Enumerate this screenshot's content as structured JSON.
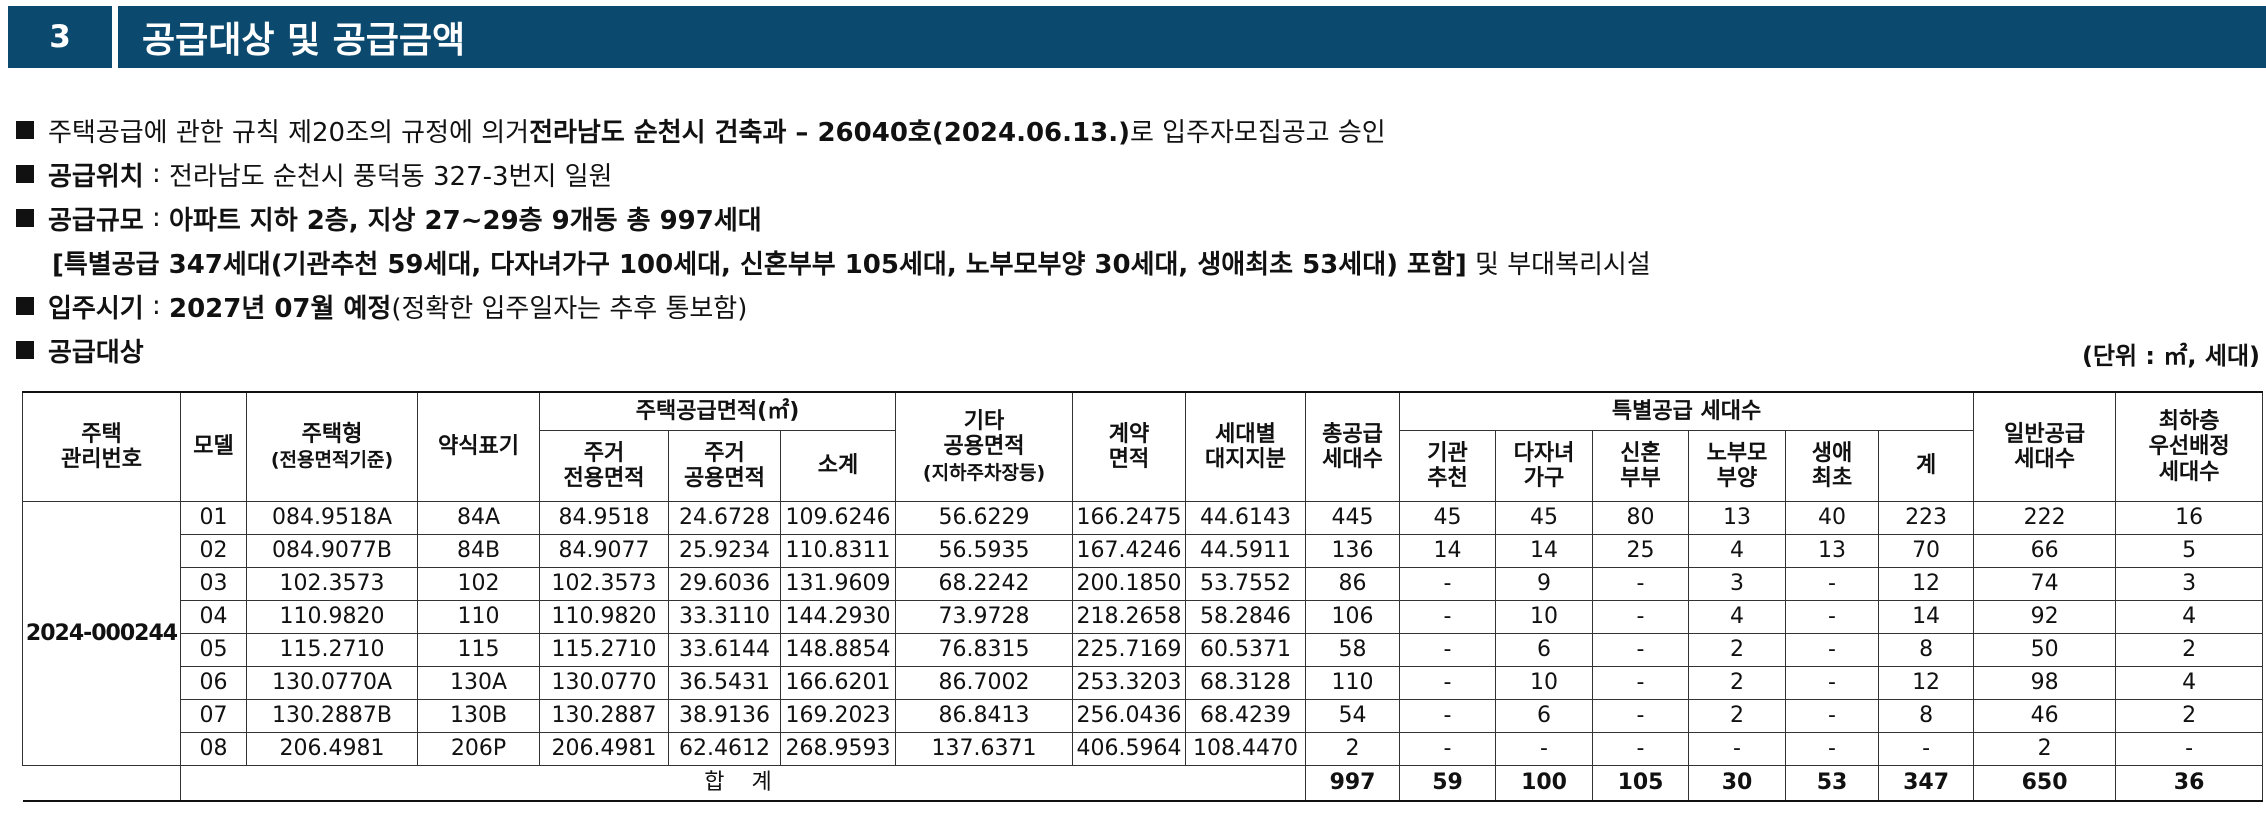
{
  "header": {
    "section_number": "3",
    "title": "공급대상 및 공급금액"
  },
  "info": {
    "approval": {
      "prefix": "주택공급에 관한 규칙 제20조의 규정에 의거 ",
      "bold": "전라남도 순천시 건축과 – 26040호(2024.06.13.)",
      "suffix": "로 입주자모집공고 승인"
    },
    "location": {
      "label": "공급위치",
      "sep": " : ",
      "value": "전라남도 순천시 풍덕동 327-3번지 일원"
    },
    "scale": {
      "label": "공급규모",
      "sep": " : ",
      "value": "아파트 지하 2층, 지상 27~29층 9개동 총 997세대"
    },
    "special": {
      "bold": "[특별공급 347세대(기관추천 59세대, 다자녀가구 100세대, 신혼부부 105세대, 노부모부양 30세대, 생애최초 53세대) 포함]",
      "suffix": " 및 부대복리시설"
    },
    "movein": {
      "label": "입주시기",
      "sep": " : ",
      "bold": "2027년 07월 예정",
      "suffix": "(정확한 입주일자는 추후 통보함)"
    },
    "target": {
      "label": "공급대상"
    },
    "unit": "(단위 : ㎡, 세대)"
  },
  "table": {
    "headers": {
      "mgmt_no": [
        "주택",
        "관리번호"
      ],
      "model": "모델",
      "type": "주택형",
      "type_sub": "(전용면적기준)",
      "abbr": "약식표기",
      "area_group": "주택공급면적(㎡)",
      "excl": [
        "주거",
        "전용면적"
      ],
      "common": [
        "주거",
        "공용면적"
      ],
      "subtotal": "소계",
      "other": [
        "기타",
        "공용면적"
      ],
      "other_sub": "(지하주차장등)",
      "contract": [
        "계약",
        "면적"
      ],
      "land": [
        "세대별",
        "대지지분"
      ],
      "total_supply": [
        "총공급",
        "세대수"
      ],
      "special_group": "특별공급 세대수",
      "inst": [
        "기관",
        "추천"
      ],
      "multi": [
        "다자녀",
        "가구"
      ],
      "newlywed": [
        "신혼",
        "부부"
      ],
      "parents": [
        "노부모",
        "부양"
      ],
      "first": [
        "생애",
        "최초"
      ],
      "sum": "계",
      "general": [
        "일반공급",
        "세대수"
      ],
      "lowest": [
        "최하층",
        "우선배정",
        "세대수"
      ]
    },
    "mgmt_number": "2024-000244",
    "rows": [
      {
        "model": "01",
        "type": "084.9518A",
        "abbr": "84A",
        "excl": "84.9518",
        "common": "24.6728",
        "subtotal": "109.6246",
        "other": "56.6229",
        "contract": "166.2475",
        "land": "44.6143",
        "total": "445",
        "inst": "45",
        "multi": "45",
        "newlywed": "80",
        "parents": "13",
        "first": "40",
        "sum": "223",
        "general": "222",
        "lowest": "16"
      },
      {
        "model": "02",
        "type": "084.9077B",
        "abbr": "84B",
        "excl": "84.9077",
        "common": "25.9234",
        "subtotal": "110.8311",
        "other": "56.5935",
        "contract": "167.4246",
        "land": "44.5911",
        "total": "136",
        "inst": "14",
        "multi": "14",
        "newlywed": "25",
        "parents": "4",
        "first": "13",
        "sum": "70",
        "general": "66",
        "lowest": "5"
      },
      {
        "model": "03",
        "type": "102.3573",
        "abbr": "102",
        "excl": "102.3573",
        "common": "29.6036",
        "subtotal": "131.9609",
        "other": "68.2242",
        "contract": "200.1850",
        "land": "53.7552",
        "total": "86",
        "inst": "-",
        "multi": "9",
        "newlywed": "-",
        "parents": "3",
        "first": "-",
        "sum": "12",
        "general": "74",
        "lowest": "3"
      },
      {
        "model": "04",
        "type": "110.9820",
        "abbr": "110",
        "excl": "110.9820",
        "common": "33.3110",
        "subtotal": "144.2930",
        "other": "73.9728",
        "contract": "218.2658",
        "land": "58.2846",
        "total": "106",
        "inst": "-",
        "multi": "10",
        "newlywed": "-",
        "parents": "4",
        "first": "-",
        "sum": "14",
        "general": "92",
        "lowest": "4"
      },
      {
        "model": "05",
        "type": "115.2710",
        "abbr": "115",
        "excl": "115.2710",
        "common": "33.6144",
        "subtotal": "148.8854",
        "other": "76.8315",
        "contract": "225.7169",
        "land": "60.5371",
        "total": "58",
        "inst": "-",
        "multi": "6",
        "newlywed": "-",
        "parents": "2",
        "first": "-",
        "sum": "8",
        "general": "50",
        "lowest": "2"
      },
      {
        "model": "06",
        "type": "130.0770A",
        "abbr": "130A",
        "excl": "130.0770",
        "common": "36.5431",
        "subtotal": "166.6201",
        "other": "86.7002",
        "contract": "253.3203",
        "land": "68.3128",
        "total": "110",
        "inst": "-",
        "multi": "10",
        "newlywed": "-",
        "parents": "2",
        "first": "-",
        "sum": "12",
        "general": "98",
        "lowest": "4"
      },
      {
        "model": "07",
        "type": "130.2887B",
        "abbr": "130B",
        "excl": "130.2887",
        "common": "38.9136",
        "subtotal": "169.2023",
        "other": "86.8413",
        "contract": "256.0436",
        "land": "68.4239",
        "total": "54",
        "inst": "-",
        "multi": "6",
        "newlywed": "-",
        "parents": "2",
        "first": "-",
        "sum": "8",
        "general": "46",
        "lowest": "2"
      },
      {
        "model": "08",
        "type": "206.4981",
        "abbr": "206P",
        "excl": "206.4981",
        "common": "62.4612",
        "subtotal": "268.9593",
        "other": "137.6371",
        "contract": "406.5964",
        "land": "108.4470",
        "total": "2",
        "inst": "-",
        "multi": "-",
        "newlywed": "-",
        "parents": "-",
        "first": "-",
        "sum": "-",
        "general": "2",
        "lowest": "-"
      }
    ],
    "totals": {
      "label": "합 계",
      "total": "997",
      "inst": "59",
      "multi": "100",
      "newlywed": "105",
      "parents": "30",
      "first": "53",
      "sum": "347",
      "general": "650",
      "lowest": "36"
    }
  }
}
